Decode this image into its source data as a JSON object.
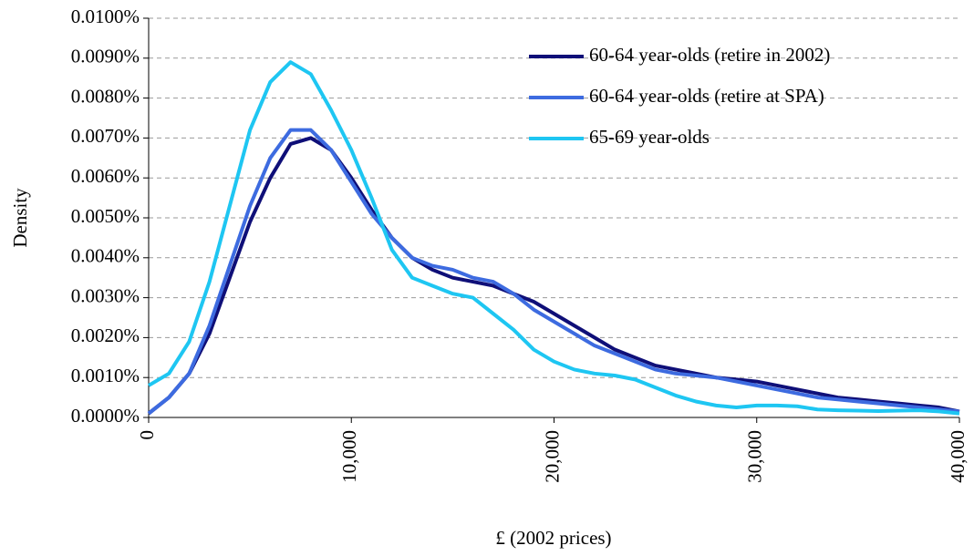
{
  "chart_data": {
    "type": "line",
    "x": [
      0,
      1000,
      2000,
      3000,
      4000,
      5000,
      6000,
      7000,
      8000,
      9000,
      10000,
      11000,
      12000,
      13000,
      14000,
      15000,
      16000,
      17000,
      18000,
      19000,
      20000,
      21000,
      22000,
      23000,
      24000,
      25000,
      26000,
      27000,
      28000,
      29000,
      30000,
      31000,
      32000,
      33000,
      34000,
      35000,
      36000,
      37000,
      38000,
      39000,
      40000
    ],
    "series": [
      {
        "name": "60-64 year-olds (retire in 2002)",
        "color": "#0f0f78",
        "values": [
          0.0001,
          0.0005,
          0.0011,
          0.0021,
          0.0035,
          0.0049,
          0.006,
          0.00685,
          0.007,
          0.0067,
          0.006,
          0.0052,
          0.0045,
          0.004,
          0.0037,
          0.0035,
          0.0034,
          0.0033,
          0.0031,
          0.0029,
          0.0026,
          0.0023,
          0.002,
          0.0017,
          0.0015,
          0.0013,
          0.0012,
          0.0011,
          0.001,
          0.00095,
          0.0009,
          0.0008,
          0.0007,
          0.0006,
          0.0005,
          0.00045,
          0.0004,
          0.00035,
          0.0003,
          0.00025,
          0.00015
        ]
      },
      {
        "name": "60-64 year-olds (retire at SPA)",
        "color": "#3d6be0",
        "values": [
          0.0001,
          0.0005,
          0.0011,
          0.0023,
          0.0038,
          0.0053,
          0.0065,
          0.0072,
          0.0072,
          0.0067,
          0.0059,
          0.0051,
          0.0045,
          0.004,
          0.0038,
          0.0037,
          0.0035,
          0.0034,
          0.0031,
          0.0027,
          0.0024,
          0.0021,
          0.0018,
          0.0016,
          0.0014,
          0.0012,
          0.0011,
          0.00105,
          0.001,
          0.0009,
          0.0008,
          0.0007,
          0.0006,
          0.0005,
          0.00045,
          0.0004,
          0.00035,
          0.0003,
          0.00025,
          0.0002,
          0.00015
        ]
      },
      {
        "name": "65-69 year-olds",
        "color": "#1ec6f2",
        "values": [
          0.0008,
          0.0011,
          0.0019,
          0.0034,
          0.0053,
          0.0072,
          0.0084,
          0.0089,
          0.0086,
          0.0077,
          0.0067,
          0.0055,
          0.0042,
          0.0035,
          0.0033,
          0.0031,
          0.003,
          0.0026,
          0.0022,
          0.0017,
          0.0014,
          0.0012,
          0.0011,
          0.00105,
          0.00095,
          0.00075,
          0.00055,
          0.0004,
          0.0003,
          0.00025,
          0.0003,
          0.0003,
          0.00028,
          0.0002,
          0.00018,
          0.00017,
          0.00016,
          0.00017,
          0.00018,
          0.00015,
          0.0001
        ]
      }
    ],
    "xlabel": "£ (2002 prices)",
    "ylabel": "Density",
    "xlim": [
      0,
      40000
    ],
    "ylim": [
      0,
      0.01
    ],
    "xticks": [
      0,
      {
        "value": 10000,
        "label": "10,000"
      },
      {
        "value": 20000,
        "label": "20,000"
      },
      {
        "value": 30000,
        "label": "30,000"
      },
      {
        "value": 40000,
        "label": "40,000"
      }
    ],
    "yticks": [
      {
        "value": 0,
        "label": "0.0000%"
      },
      {
        "value": 0.001,
        "label": "0.0010%"
      },
      {
        "value": 0.002,
        "label": "0.0020%"
      },
      {
        "value": 0.003,
        "label": "0.0030%"
      },
      {
        "value": 0.004,
        "label": "0.0040%"
      },
      {
        "value": 0.005,
        "label": "0.0050%"
      },
      {
        "value": 0.006,
        "label": "0.0060%"
      },
      {
        "value": 0.007,
        "label": "0.0070%"
      },
      {
        "value": 0.008,
        "label": "0.0080%"
      },
      {
        "value": 0.009,
        "label": "0.0090%"
      },
      {
        "value": 0.01,
        "label": "0.0100%"
      }
    ],
    "grid": true,
    "legend": "top-right"
  }
}
